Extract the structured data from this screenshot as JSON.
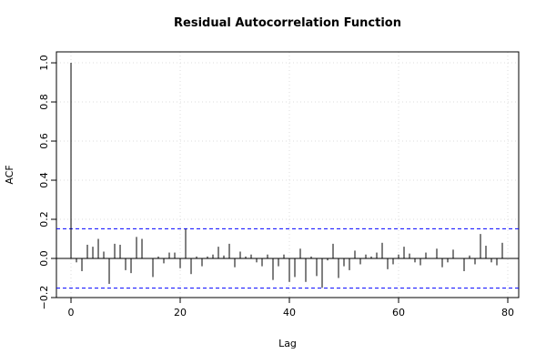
{
  "chart_data": {
    "type": "acf",
    "title": "Residual Autocorrelation Function",
    "x_label": "Lag",
    "y_label": "ACF",
    "x": [
      0,
      1,
      2,
      3,
      4,
      5,
      6,
      7,
      8,
      9,
      10,
      11,
      12,
      13,
      14,
      15,
      16,
      17,
      18,
      19,
      20,
      21,
      22,
      23,
      24,
      25,
      26,
      27,
      28,
      29,
      30,
      31,
      32,
      33,
      34,
      35,
      36,
      37,
      38,
      39,
      40,
      41,
      42,
      43,
      44,
      45,
      46,
      47,
      48,
      49,
      50,
      51,
      52,
      53,
      54,
      55,
      56,
      57,
      58,
      59,
      60,
      61,
      62,
      63,
      64,
      65,
      66,
      67,
      68,
      69,
      70,
      71,
      72,
      73,
      74,
      75,
      76,
      77,
      78,
      79
    ],
    "values": [
      1.0,
      -0.02,
      -0.065,
      0.07,
      0.06,
      0.1,
      0.035,
      -0.13,
      0.075,
      0.07,
      -0.06,
      -0.075,
      0.11,
      0.1,
      0.0,
      -0.095,
      0.01,
      -0.025,
      0.03,
      0.03,
      -0.05,
      0.15,
      -0.08,
      0.01,
      -0.04,
      0.01,
      0.02,
      0.06,
      0.015,
      0.075,
      -0.045,
      0.035,
      0.01,
      0.02,
      -0.02,
      -0.04,
      0.02,
      -0.11,
      -0.04,
      0.02,
      -0.12,
      -0.095,
      0.05,
      -0.12,
      0.01,
      -0.09,
      -0.15,
      -0.01,
      0.075,
      -0.1,
      -0.04,
      -0.06,
      0.04,
      -0.03,
      0.02,
      0.01,
      0.03,
      0.08,
      -0.055,
      -0.03,
      0.02,
      0.06,
      0.025,
      -0.02,
      -0.035,
      0.03,
      0.0,
      0.05,
      -0.045,
      -0.02,
      0.045,
      0.0,
      -0.065,
      0.015,
      -0.03,
      0.125,
      0.065,
      -0.02,
      -0.035,
      0.08
    ],
    "color": "#000000",
    "confidence_limits": [
      0.152,
      -0.152
    ],
    "confidence_color": "#0000ff",
    "xlim": [
      -2.67,
      82
    ],
    "xticks": [
      0,
      20,
      40,
      60,
      80
    ],
    "ylim": [
      -0.2,
      1.056
    ],
    "yticks": [
      {
        "value": -0.2,
        "label": "−0.2"
      },
      {
        "value": 0,
        "label": "0.0"
      },
      {
        "value": 0.2,
        "label": "0.2"
      },
      {
        "value": 0.4,
        "label": "0.4"
      },
      {
        "value": 0.6,
        "label": "0.6"
      },
      {
        "value": 0.8,
        "label": "0.8"
      },
      {
        "value": 1.0,
        "label": "1.0"
      }
    ],
    "grid": true
  }
}
